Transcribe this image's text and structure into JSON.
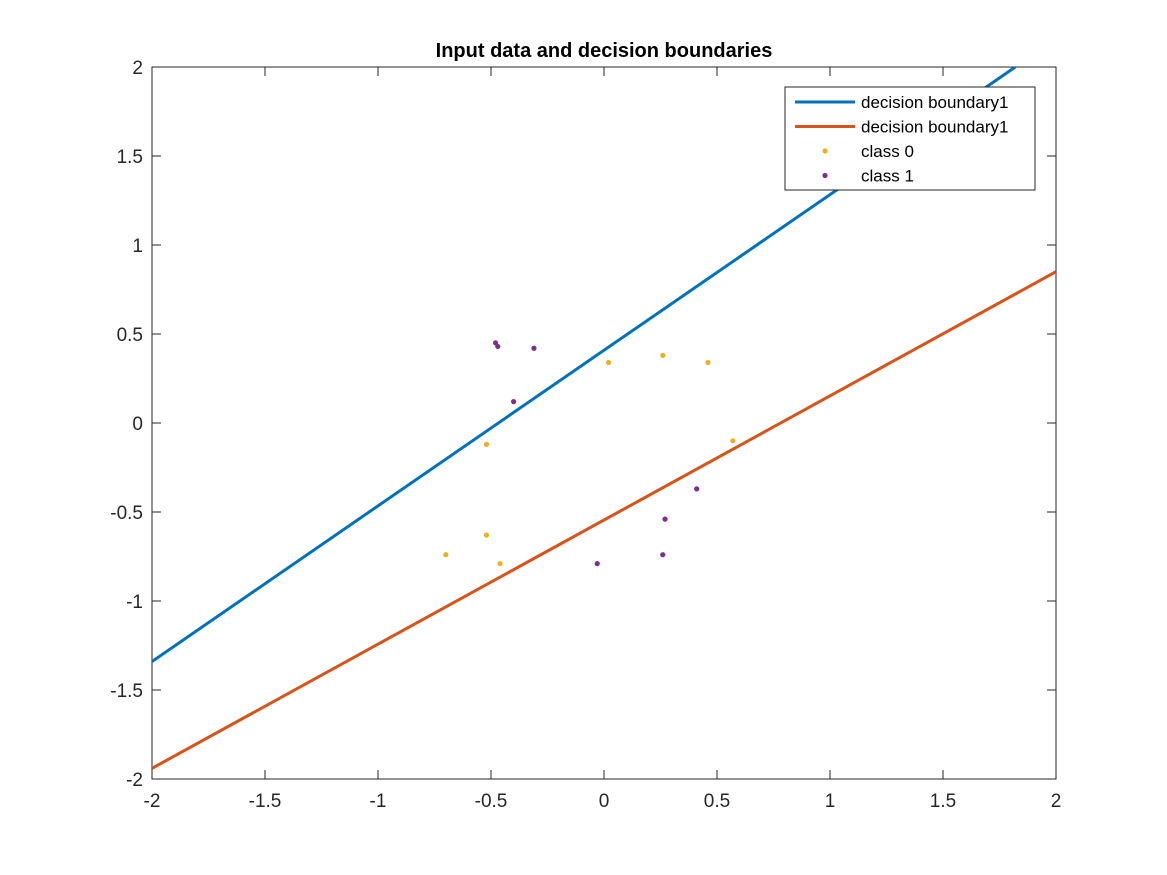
{
  "chart_data": {
    "type": "line",
    "title": "Input data and decision boundaries",
    "xlabel": "",
    "ylabel": "",
    "xlim": [
      -2,
      2
    ],
    "ylim": [
      -2,
      2
    ],
    "xticks": [
      -2,
      -1.5,
      -1,
      -0.5,
      0,
      0.5,
      1,
      1.5,
      2
    ],
    "yticks": [
      -2,
      -1.5,
      -1,
      -0.5,
      0,
      0.5,
      1,
      1.5,
      2
    ],
    "xtick_labels": [
      "-2",
      "-1.5",
      "-1",
      "-0.5",
      "0",
      "0.5",
      "1",
      "1.5",
      "2"
    ],
    "ytick_labels": [
      "-2",
      "-1.5",
      "-1",
      "-0.5",
      "0",
      "0.5",
      "1",
      "1.5",
      "2"
    ],
    "grid": false,
    "legend_position": "top-right",
    "lines": [
      {
        "name": "decision boundary1",
        "color": "#0072BD",
        "x": [
          -2,
          1.82
        ],
        "y": [
          -1.34,
          2.0
        ]
      },
      {
        "name": "decision boundary1",
        "color": "#D95319",
        "x": [
          -2,
          2
        ],
        "y": [
          -1.94,
          0.85
        ]
      }
    ],
    "scatter": [
      {
        "name": "class 0",
        "color": "#EDB120",
        "points": [
          [
            0.02,
            0.34
          ],
          [
            0.26,
            0.38
          ],
          [
            0.46,
            0.34
          ],
          [
            0.57,
            -0.1
          ],
          [
            -0.52,
            -0.12
          ],
          [
            -0.52,
            -0.63
          ],
          [
            -0.7,
            -0.74
          ],
          [
            -0.46,
            -0.79
          ]
        ]
      },
      {
        "name": "class 1",
        "color": "#7E2F8E",
        "points": [
          [
            -0.48,
            0.45
          ],
          [
            -0.47,
            0.43
          ],
          [
            -0.31,
            0.42
          ],
          [
            -0.4,
            0.12
          ],
          [
            0.41,
            -0.37
          ],
          [
            0.27,
            -0.54
          ],
          [
            0.26,
            -0.74
          ],
          [
            -0.03,
            -0.79
          ]
        ]
      }
    ]
  }
}
